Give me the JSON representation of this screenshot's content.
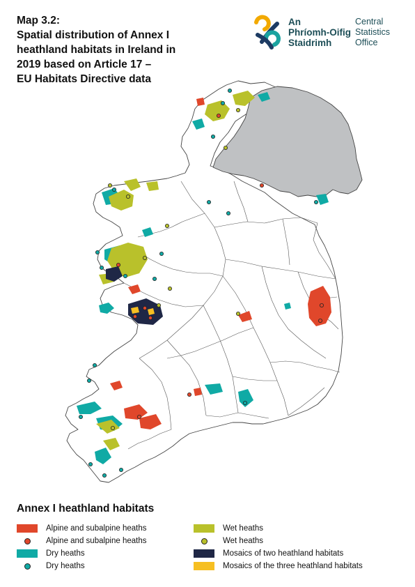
{
  "header": {
    "title_lines": [
      "Map 3.2:",
      "Spatial distribution of Annex I",
      "heathland habitats in Ireland in",
      "2019 based on Article 17 –",
      "EU Habitats Directive data"
    ]
  },
  "logo": {
    "irish_lines": [
      "An",
      "Phríomh-Oifig",
      "Staidrimh"
    ],
    "english_lines": [
      "Central",
      "Statistics",
      "Office"
    ],
    "colors": {
      "text": "#1d4e57",
      "orange": "#f2a900",
      "teal": "#1aa3a0",
      "navy": "#1d3b63"
    }
  },
  "map": {
    "colors": {
      "land": "#ffffff",
      "northern_ireland": "#bfc1c3",
      "boundary": "#444444",
      "alpine": "#e0472b",
      "dry": "#10aaa5",
      "wet": "#b9c12b",
      "mosaic_two": "#1f2746",
      "mosaic_three": "#f6bf22"
    }
  },
  "legend": {
    "title": "Annex I heathland habitats",
    "items": [
      {
        "label": "Alpine and subalpine heaths",
        "kind": "area",
        "color": "#e0472b"
      },
      {
        "label": "Alpine and subalpine heaths",
        "kind": "point",
        "color": "#e0472b"
      },
      {
        "label": "Dry heaths",
        "kind": "area",
        "color": "#10aaa5"
      },
      {
        "label": "Dry heaths",
        "kind": "point",
        "color": "#10aaa5"
      },
      {
        "label": "Wet heaths",
        "kind": "area",
        "color": "#b9c12b"
      },
      {
        "label": "Wet heaths",
        "kind": "point",
        "color": "#b9c12b"
      },
      {
        "label": "Mosaics of two heathland habitats",
        "kind": "area",
        "color": "#1f2746"
      },
      {
        "label": "Mosaics of the three heathland habitats",
        "kind": "area",
        "color": "#f6bf22"
      }
    ]
  }
}
